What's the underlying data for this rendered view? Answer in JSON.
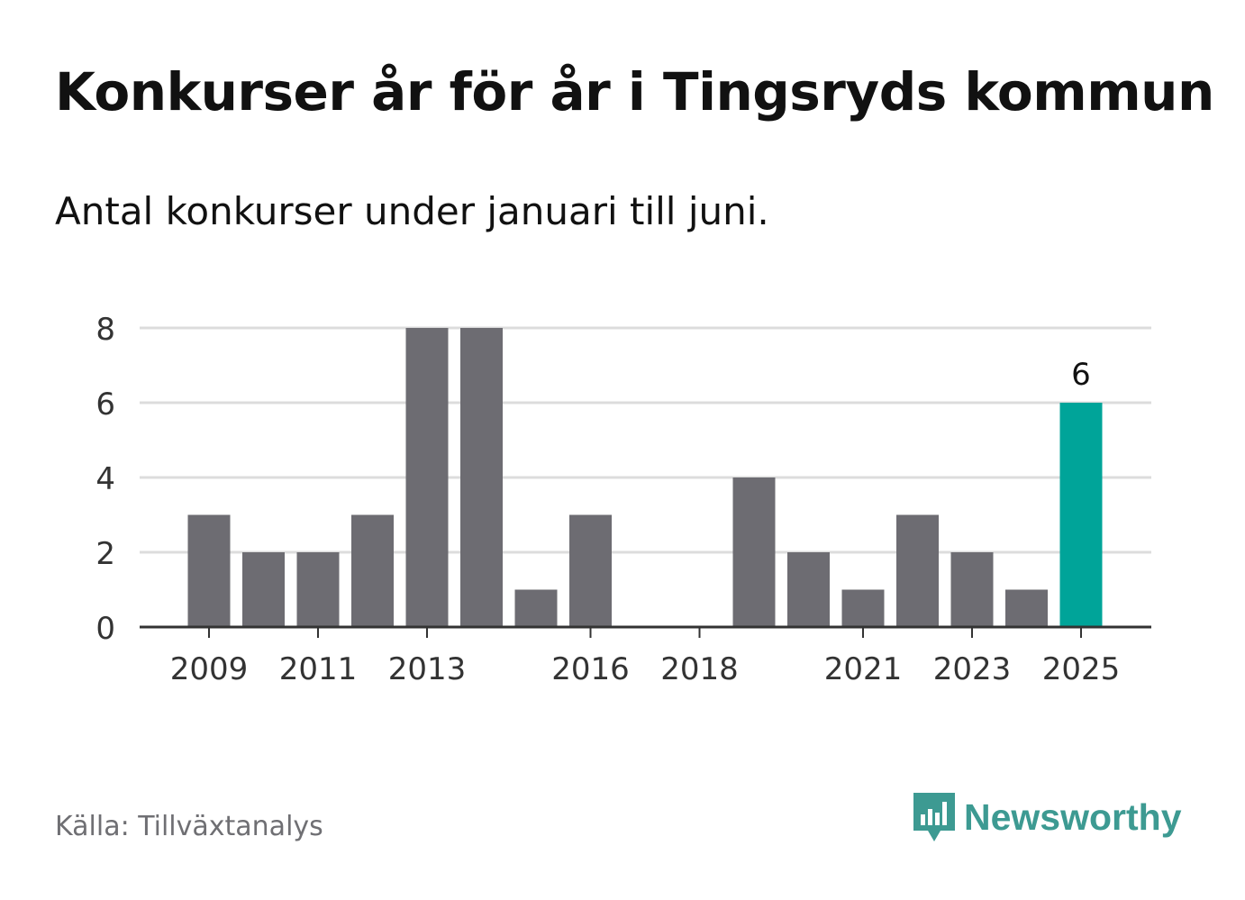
{
  "title": "Konkurser år för år i Tingsryds kommun",
  "subtitle": "Antal konkurser under januari till juni.",
  "source": "Källa: Tillväxtanalys",
  "brand": {
    "name": "Newsworthy",
    "icon": "newsworthy-logo-icon"
  },
  "colors": {
    "bar": "#6d6c72",
    "highlight": "#00a499",
    "grid": "#dcdcdc",
    "axis": "#333333",
    "brand": "#3d9a92"
  },
  "chart_data": {
    "type": "bar",
    "categories": [
      "2009",
      "2010",
      "2011",
      "2012",
      "2013",
      "2014",
      "2015",
      "2016",
      "2017",
      "2018",
      "2019",
      "2020",
      "2021",
      "2022",
      "2023",
      "2024",
      "2025"
    ],
    "values": [
      3,
      2,
      2,
      3,
      8,
      8,
      1,
      3,
      0,
      0,
      4,
      2,
      1,
      3,
      2,
      1,
      6
    ],
    "tick_labels": [
      "2009",
      "2011",
      "2013",
      "2016",
      "2018",
      "2021",
      "2023",
      "2025"
    ],
    "yticks": [
      0,
      2,
      4,
      6,
      8
    ],
    "ylim": [
      0,
      8
    ],
    "highlight": {
      "category": "2025",
      "label": "6"
    },
    "xlabel": "",
    "ylabel": "",
    "grid": true,
    "legend": "none"
  }
}
